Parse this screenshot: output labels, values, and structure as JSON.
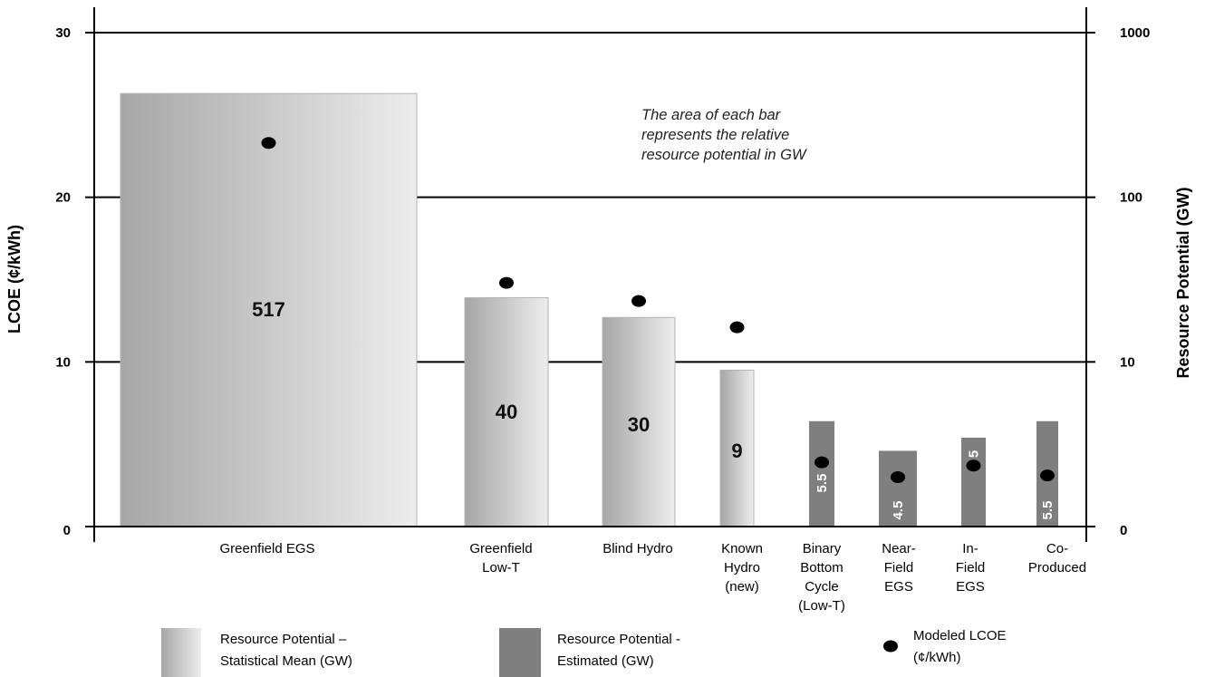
{
  "chart_data": {
    "type": "bar",
    "ylabel_left": "LCOE (¢/kWh)",
    "ylabel_right": "Resource Potential (GW)",
    "yticks_left": [
      "0",
      "10",
      "20",
      "30"
    ],
    "yticks_right": [
      "0",
      "10",
      "100",
      "1000"
    ],
    "ylim_left": [
      0,
      30
    ],
    "right_axis_scale": "log",
    "grid": true,
    "annotation": [
      "The area of each bar",
      "represents the relative",
      "resource potential in GW"
    ],
    "categories": [
      {
        "label": [
          "Greenfield EGS"
        ],
        "resource_gw": "517",
        "bar_value": 26.3,
        "type": "statistical",
        "lcoe": 23.3
      },
      {
        "label": [
          "Greenfield",
          "Low-T"
        ],
        "resource_gw": "40",
        "bar_value": 13.9,
        "type": "statistical",
        "lcoe": 14.8
      },
      {
        "label": [
          "Blind Hydro"
        ],
        "resource_gw": "30",
        "bar_value": 12.7,
        "type": "statistical",
        "lcoe": 13.7
      },
      {
        "label": [
          "Known",
          "Hydro",
          "(new)"
        ],
        "resource_gw": "9",
        "bar_value": 9.5,
        "type": "statistical",
        "lcoe": 12.1
      },
      {
        "label": [
          "Binary",
          "Bottom",
          "Cycle",
          "(Low-T)"
        ],
        "resource_gw": "5.5",
        "bar_value": 6.4,
        "type": "estimated",
        "lcoe": 3.9
      },
      {
        "label": [
          "Near-",
          "Field",
          "EGS"
        ],
        "resource_gw": "4.5",
        "bar_value": 4.6,
        "type": "estimated",
        "lcoe": 3.0
      },
      {
        "label": [
          "In-",
          "Field",
          "EGS"
        ],
        "resource_gw": "5",
        "bar_value": 5.4,
        "type": "estimated",
        "lcoe": 3.7
      },
      {
        "label": [
          "Co-",
          "Produced"
        ],
        "resource_gw": "5.5",
        "bar_value": 6.4,
        "type": "estimated",
        "lcoe": 3.1
      }
    ],
    "legend": [
      {
        "key": "statistical",
        "label": [
          "Resource Potential –",
          "Statistical Mean (GW)"
        ]
      },
      {
        "key": "estimated",
        "label": [
          "Resource Potential -",
          "Estimated (GW)"
        ]
      },
      {
        "key": "lcoe",
        "label": [
          "Modeled LCOE",
          "(¢/kWh)"
        ]
      }
    ],
    "colors": {
      "estimated": "#7f7f7f",
      "statistical_dark": "#a6a6a6",
      "statistical_light": "#ededed",
      "lcoe_dot": "#000000"
    }
  }
}
